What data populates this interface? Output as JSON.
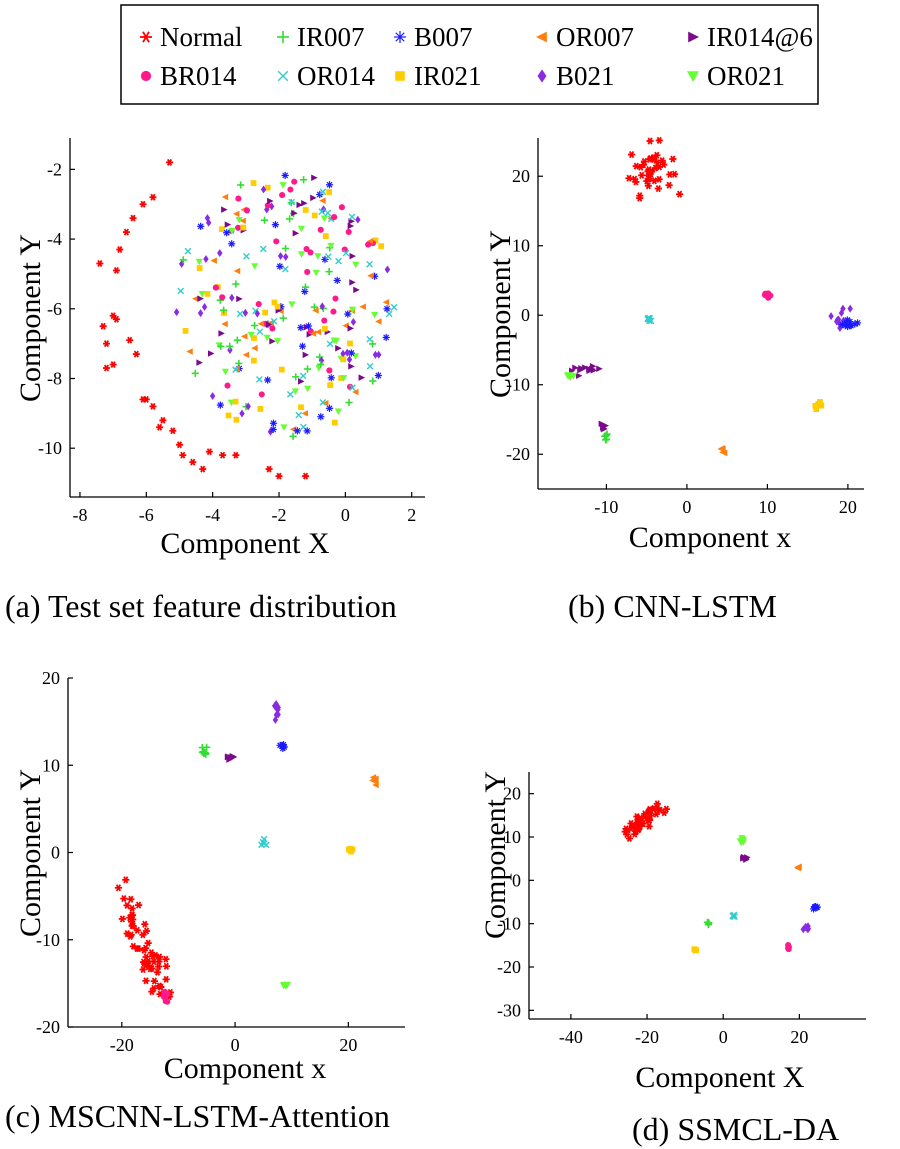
{
  "legend": {
    "entries": [
      {
        "name": "Normal",
        "marker": "star",
        "color": "#ff0000"
      },
      {
        "name": "IR007",
        "marker": "plus",
        "color": "#33dd33"
      },
      {
        "name": "B007",
        "marker": "asterisk",
        "color": "#1a1aff"
      },
      {
        "name": "OR007",
        "marker": "tri-left",
        "color": "#ff7f0e"
      },
      {
        "name": "IR014@6",
        "marker": "tri-right",
        "color": "#7b0a8a"
      },
      {
        "name": "BR014",
        "marker": "circle",
        "color": "#ff1a8c"
      },
      {
        "name": "OR014",
        "marker": "x",
        "color": "#33cccc"
      },
      {
        "name": "IR021",
        "marker": "square",
        "color": "#ffcc00"
      },
      {
        "name": "B021",
        "marker": "diamond",
        "color": "#8a2be2"
      },
      {
        "name": "OR021",
        "marker": "tri-down",
        "color": "#66ff33"
      }
    ]
  },
  "chart_data": [
    {
      "type": "scatter",
      "caption": "(a) Test set feature distribution",
      "xlabel": "Component X",
      "ylabel": "Component Y",
      "xlim": [
        -8.3,
        2.4
      ],
      "ylim": [
        -11.4,
        -1.1
      ],
      "xticks": [
        -8,
        -6,
        -4,
        -2,
        0,
        2
      ],
      "yticks": [
        -2,
        -4,
        -6,
        -8,
        -10
      ],
      "normal_points": [
        [
          -5.3,
          -1.8
        ],
        [
          -5.8,
          -2.8
        ],
        [
          -6.1,
          -3.0
        ],
        [
          -6.4,
          -3.4
        ],
        [
          -6.6,
          -3.8
        ],
        [
          -6.8,
          -4.3
        ],
        [
          -7.4,
          -4.7
        ],
        [
          -6.9,
          -4.9
        ],
        [
          -7.0,
          -6.2
        ],
        [
          -7.3,
          -6.5
        ],
        [
          -7.2,
          -7.0
        ],
        [
          -7.0,
          -7.6
        ],
        [
          -6.5,
          -6.9
        ],
        [
          -6.3,
          -7.3
        ],
        [
          -6.1,
          -8.6
        ],
        [
          -5.8,
          -8.8
        ],
        [
          -5.5,
          -9.2
        ],
        [
          -5.2,
          -9.5
        ],
        [
          -5.0,
          -9.9
        ],
        [
          -4.9,
          -10.2
        ],
        [
          -4.6,
          -10.4
        ],
        [
          -4.3,
          -10.6
        ],
        [
          -3.7,
          -10.2
        ],
        [
          -3.3,
          -10.2
        ],
        [
          -2.0,
          -10.8
        ],
        [
          -2.3,
          -10.6
        ],
        [
          -1.2,
          -10.8
        ],
        [
          -7.2,
          -7.7
        ],
        [
          -6.9,
          -6.3
        ],
        [
          -6.0,
          -8.6
        ],
        [
          -5.6,
          -9.4
        ],
        [
          -4.1,
          -10.1
        ]
      ],
      "cloud_center": [
        -1.8,
        -5.9
      ],
      "cloud_radius_x": 3.3,
      "cloud_radius_y": 3.8,
      "points_per_class": 32
    },
    {
      "type": "scatter",
      "caption": "(b) CNN-LSTM",
      "xlabel": "Component x",
      "ylabel": "Component Y",
      "xlim": [
        -18.5,
        22
      ],
      "ylim": [
        -25,
        25.5
      ],
      "xticks": [
        -10,
        0,
        10,
        20
      ],
      "yticks": [
        20,
        10,
        0,
        -10,
        -20
      ],
      "clusters": [
        {
          "class": "Normal",
          "center": [
            -4.5,
            21.0
          ],
          "spread": [
            2.2,
            3.0
          ],
          "n": 40
        },
        {
          "class": "BR014",
          "center": [
            9.7,
            2.9
          ],
          "spread": [
            0.4,
            0.4
          ],
          "n": 6
        },
        {
          "class": "OR014",
          "center": [
            -4.6,
            -0.6
          ],
          "spread": [
            0.5,
            0.4
          ],
          "n": 6
        },
        {
          "class": "B021",
          "center": [
            19.3,
            -0.3
          ],
          "spread": [
            0.8,
            1.2
          ],
          "n": 12
        },
        {
          "class": "B007",
          "center": [
            20.2,
            -1.2
          ],
          "spread": [
            1.0,
            0.5
          ],
          "n": 10
        },
        {
          "class": "IR014@6",
          "center": [
            -12.5,
            -7.9
          ],
          "spread": [
            1.5,
            0.4
          ],
          "n": 12
        },
        {
          "class": "OR021",
          "center": [
            -14.5,
            -8.7
          ],
          "spread": [
            0.5,
            0.3
          ],
          "n": 8
        },
        {
          "class": "IR014@6",
          "center": [
            -10.3,
            -16.0
          ],
          "spread": [
            0.3,
            0.5
          ],
          "n": 5
        },
        {
          "class": "IR007",
          "center": [
            -10.0,
            -17.3
          ],
          "spread": [
            0.4,
            0.4
          ],
          "n": 6
        },
        {
          "class": "IR021",
          "center": [
            16.3,
            -13.0
          ],
          "spread": [
            0.4,
            0.4
          ],
          "n": 6
        },
        {
          "class": "OR007",
          "center": [
            4.5,
            -19.5
          ],
          "spread": [
            0.4,
            0.3
          ],
          "n": 6
        }
      ]
    },
    {
      "type": "scatter",
      "caption": "(c) MSCNN-LSTM-Attention",
      "xlabel": "Component x",
      "ylabel": "Component Y",
      "xlim": [
        -29.5,
        30
      ],
      "ylim": [
        -20,
        20
      ],
      "xticks": [
        -20,
        0,
        20
      ],
      "yticks": [
        20,
        10,
        0,
        -10,
        -20
      ],
      "clusters": [
        {
          "class": "Normal",
          "center": [
            -16.5,
            -9.0
          ],
          "spread": [
            2.5,
            5.5
          ],
          "n": 60,
          "shape": "band"
        },
        {
          "class": "BR014",
          "center": [
            -12.3,
            -16.6
          ],
          "spread": [
            0.6,
            0.5
          ],
          "n": 8
        },
        {
          "class": "IR007",
          "center": [
            -5.5,
            11.5
          ],
          "spread": [
            0.5,
            0.6
          ],
          "n": 8
        },
        {
          "class": "IR014@6",
          "center": [
            -1.0,
            10.8
          ],
          "spread": [
            0.8,
            0.3
          ],
          "n": 8
        },
        {
          "class": "B021",
          "center": [
            7.4,
            16.0
          ],
          "spread": [
            0.5,
            0.9
          ],
          "n": 8
        },
        {
          "class": "B007",
          "center": [
            8.4,
            12.2
          ],
          "spread": [
            0.5,
            0.6
          ],
          "n": 6
        },
        {
          "class": "OR007",
          "center": [
            24.5,
            8.1
          ],
          "spread": [
            0.4,
            0.4
          ],
          "n": 6
        },
        {
          "class": "OR014",
          "center": [
            5.3,
            1.1
          ],
          "spread": [
            0.4,
            0.4
          ],
          "n": 5
        },
        {
          "class": "IR021",
          "center": [
            20.4,
            0.4
          ],
          "spread": [
            0.5,
            0.3
          ],
          "n": 6
        },
        {
          "class": "OR021",
          "center": [
            8.8,
            -15.4
          ],
          "spread": [
            0.5,
            0.3
          ],
          "n": 6
        }
      ]
    },
    {
      "type": "scatter",
      "caption": "(d) SSMCL-DA",
      "xlabel": "Component X",
      "ylabel": "Component Y",
      "xlim": [
        -51,
        37.5
      ],
      "ylim": [
        -32,
        25
      ],
      "xticks": [
        -40,
        -20,
        0,
        20
      ],
      "yticks": [
        20,
        10,
        0,
        -10,
        -20,
        -30
      ],
      "clusters": [
        {
          "class": "Normal",
          "center": [
            -21.0,
            13.8
          ],
          "spread": [
            3.5,
            2.8
          ],
          "n": 50,
          "shape": "diag"
        },
        {
          "class": "OR021",
          "center": [
            5.0,
            9.3
          ],
          "spread": [
            0.4,
            0.6
          ],
          "n": 6
        },
        {
          "class": "IR014@6",
          "center": [
            5.8,
            5.3
          ],
          "spread": [
            0.5,
            0.6
          ],
          "n": 6
        },
        {
          "class": "OR007",
          "center": [
            19.7,
            2.8
          ],
          "spread": [
            0.4,
            0.4
          ],
          "n": 5
        },
        {
          "class": "B007",
          "center": [
            24.3,
            -6.2
          ],
          "spread": [
            0.4,
            0.5
          ],
          "n": 6
        },
        {
          "class": "B021",
          "center": [
            22.0,
            -11.0
          ],
          "spread": [
            0.4,
            0.6
          ],
          "n": 6
        },
        {
          "class": "IR007",
          "center": [
            -3.8,
            -9.8
          ],
          "spread": [
            0.3,
            0.3
          ],
          "n": 4
        },
        {
          "class": "OR014",
          "center": [
            2.8,
            -8.4
          ],
          "spread": [
            0.3,
            0.3
          ],
          "n": 4
        },
        {
          "class": "IR021",
          "center": [
            -7.5,
            -16.0
          ],
          "spread": [
            0.3,
            0.3
          ],
          "n": 4
        },
        {
          "class": "BR014",
          "center": [
            17.0,
            -15.7
          ],
          "spread": [
            0.4,
            0.4
          ],
          "n": 5
        }
      ]
    }
  ]
}
